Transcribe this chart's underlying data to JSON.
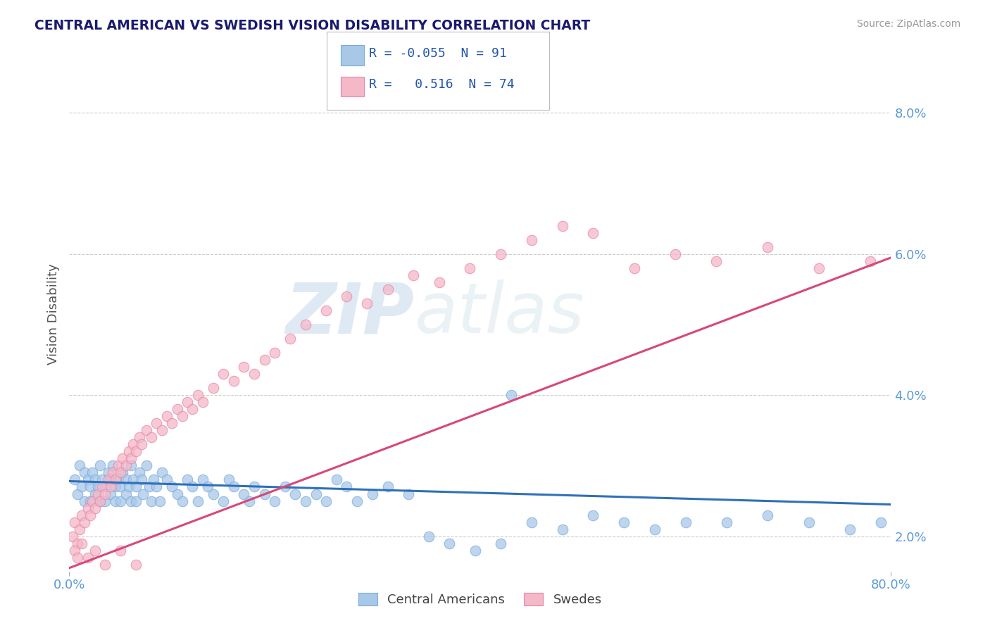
{
  "title": "CENTRAL AMERICAN VS SWEDISH VISION DISABILITY CORRELATION CHART",
  "source": "Source: ZipAtlas.com",
  "ylabel": "Vision Disability",
  "xmin": 0.0,
  "xmax": 0.8,
  "ymin": 0.015,
  "ymax": 0.088,
  "yticks": [
    0.02,
    0.04,
    0.06,
    0.08
  ],
  "ytick_labels": [
    "2.0%",
    "4.0%",
    "6.0%",
    "8.0%"
  ],
  "xticks": [
    0.0,
    0.8
  ],
  "xtick_labels": [
    "0.0%",
    "80.0%"
  ],
  "blue_color": "#a8c8e8",
  "pink_color": "#f4b8c8",
  "blue_edge_color": "#7aace0",
  "pink_edge_color": "#e888a8",
  "blue_line_color": "#3070b8",
  "pink_line_color": "#d84878",
  "title_color": "#1a1a6e",
  "axis_color": "#5b9bd5",
  "watermark_zip": "ZIP",
  "watermark_atlas": "atlas",
  "legend_R_blue": "-0.055",
  "legend_N_blue": "91",
  "legend_R_pink": "0.516",
  "legend_N_pink": "74",
  "blue_scatter_x": [
    0.005,
    0.008,
    0.01,
    0.012,
    0.015,
    0.015,
    0.018,
    0.02,
    0.02,
    0.022,
    0.025,
    0.025,
    0.028,
    0.03,
    0.03,
    0.032,
    0.035,
    0.035,
    0.038,
    0.04,
    0.04,
    0.042,
    0.045,
    0.045,
    0.048,
    0.05,
    0.05,
    0.052,
    0.055,
    0.055,
    0.058,
    0.06,
    0.06,
    0.062,
    0.065,
    0.065,
    0.068,
    0.07,
    0.072,
    0.075,
    0.078,
    0.08,
    0.082,
    0.085,
    0.088,
    0.09,
    0.095,
    0.1,
    0.105,
    0.11,
    0.115,
    0.12,
    0.125,
    0.13,
    0.135,
    0.14,
    0.15,
    0.155,
    0.16,
    0.17,
    0.175,
    0.18,
    0.19,
    0.2,
    0.21,
    0.22,
    0.23,
    0.24,
    0.25,
    0.26,
    0.27,
    0.28,
    0.295,
    0.31,
    0.33,
    0.35,
    0.37,
    0.395,
    0.42,
    0.45,
    0.48,
    0.51,
    0.54,
    0.57,
    0.6,
    0.64,
    0.68,
    0.72,
    0.76,
    0.79,
    0.43
  ],
  "blue_scatter_y": [
    0.028,
    0.026,
    0.03,
    0.027,
    0.029,
    0.025,
    0.028,
    0.027,
    0.025,
    0.029,
    0.028,
    0.026,
    0.027,
    0.03,
    0.025,
    0.028,
    0.027,
    0.025,
    0.029,
    0.028,
    0.026,
    0.03,
    0.027,
    0.025,
    0.028,
    0.027,
    0.025,
    0.029,
    0.028,
    0.026,
    0.027,
    0.03,
    0.025,
    0.028,
    0.027,
    0.025,
    0.029,
    0.028,
    0.026,
    0.03,
    0.027,
    0.025,
    0.028,
    0.027,
    0.025,
    0.029,
    0.028,
    0.027,
    0.026,
    0.025,
    0.028,
    0.027,
    0.025,
    0.028,
    0.027,
    0.026,
    0.025,
    0.028,
    0.027,
    0.026,
    0.025,
    0.027,
    0.026,
    0.025,
    0.027,
    0.026,
    0.025,
    0.026,
    0.025,
    0.028,
    0.027,
    0.025,
    0.026,
    0.027,
    0.026,
    0.02,
    0.019,
    0.018,
    0.019,
    0.022,
    0.021,
    0.023,
    0.022,
    0.021,
    0.022,
    0.022,
    0.023,
    0.022,
    0.021,
    0.022,
    0.04
  ],
  "pink_scatter_x": [
    0.003,
    0.005,
    0.008,
    0.01,
    0.012,
    0.015,
    0.018,
    0.02,
    0.022,
    0.025,
    0.028,
    0.03,
    0.032,
    0.035,
    0.038,
    0.04,
    0.042,
    0.045,
    0.048,
    0.05,
    0.052,
    0.055,
    0.058,
    0.06,
    0.062,
    0.065,
    0.068,
    0.07,
    0.075,
    0.08,
    0.085,
    0.09,
    0.095,
    0.1,
    0.105,
    0.11,
    0.115,
    0.12,
    0.125,
    0.13,
    0.14,
    0.15,
    0.16,
    0.17,
    0.18,
    0.19,
    0.2,
    0.215,
    0.23,
    0.25,
    0.27,
    0.29,
    0.31,
    0.335,
    0.36,
    0.39,
    0.42,
    0.45,
    0.48,
    0.51,
    0.55,
    0.59,
    0.63,
    0.68,
    0.73,
    0.78,
    0.005,
    0.008,
    0.012,
    0.018,
    0.025,
    0.035,
    0.05,
    0.065
  ],
  "pink_scatter_y": [
    0.02,
    0.022,
    0.019,
    0.021,
    0.023,
    0.022,
    0.024,
    0.023,
    0.025,
    0.024,
    0.026,
    0.025,
    0.027,
    0.026,
    0.028,
    0.027,
    0.029,
    0.028,
    0.03,
    0.029,
    0.031,
    0.03,
    0.032,
    0.031,
    0.033,
    0.032,
    0.034,
    0.033,
    0.035,
    0.034,
    0.036,
    0.035,
    0.037,
    0.036,
    0.038,
    0.037,
    0.039,
    0.038,
    0.04,
    0.039,
    0.041,
    0.043,
    0.042,
    0.044,
    0.043,
    0.045,
    0.046,
    0.048,
    0.05,
    0.052,
    0.054,
    0.053,
    0.055,
    0.057,
    0.056,
    0.058,
    0.06,
    0.062,
    0.064,
    0.063,
    0.058,
    0.06,
    0.059,
    0.061,
    0.058,
    0.059,
    0.018,
    0.017,
    0.019,
    0.017,
    0.018,
    0.016,
    0.018,
    0.016
  ],
  "blue_line_x": [
    0.0,
    0.8
  ],
  "blue_line_y": [
    0.0278,
    0.0245
  ],
  "pink_line_x": [
    0.0,
    0.8
  ],
  "pink_line_y": [
    0.0155,
    0.0595
  ]
}
